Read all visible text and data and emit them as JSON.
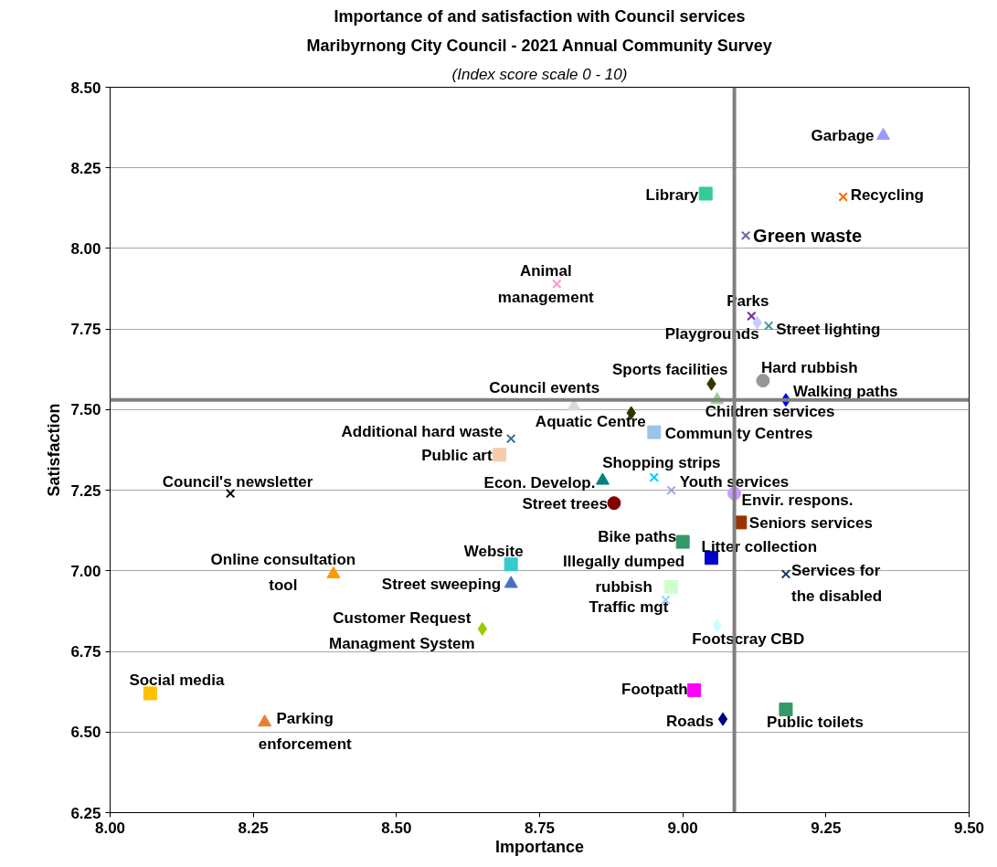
{
  "chart_data": {
    "type": "scatter",
    "title": "Importance of and satisfaction with Council services",
    "subtitle": "Maribyrnong City Council - 2021 Annual Community Survey",
    "annotations": [
      "(Index score scale 0 - 10)"
    ],
    "xlabel": "Importance",
    "ylabel": "Satisfaction",
    "xlim": [
      8.0,
      9.5
    ],
    "xticks": [
      {
        "value": 8.0,
        "label": "8.00"
      },
      {
        "value": 8.25,
        "label": "8.25"
      },
      {
        "value": 8.5,
        "label": "8.50"
      },
      {
        "value": 8.75,
        "label": "8.75"
      },
      {
        "value": 9.0,
        "label": "9.00"
      },
      {
        "value": 9.25,
        "label": "9.25"
      },
      {
        "value": 9.5,
        "label": "9.50"
      }
    ],
    "ylim": [
      6.25,
      8.5
    ],
    "yticks": [
      {
        "value": 6.25,
        "label": "6.25"
      },
      {
        "value": 6.5,
        "label": "6.50"
      },
      {
        "value": 6.75,
        "label": "6.75"
      },
      {
        "value": 7.0,
        "label": "7.00"
      },
      {
        "value": 7.25,
        "label": "7.25"
      },
      {
        "value": 7.5,
        "label": "7.50"
      },
      {
        "value": 7.75,
        "label": "7.75"
      },
      {
        "value": 8.0,
        "label": "8.00"
      },
      {
        "value": 8.25,
        "label": "8.25"
      },
      {
        "value": 8.5,
        "label": "8.50"
      }
    ],
    "grid": "y",
    "ref_lines": [
      {
        "axis": "x",
        "value": 9.09,
        "color": "#808080"
      },
      {
        "axis": "y",
        "value": 7.53,
        "color": "#808080"
      }
    ],
    "series": [
      {
        "name": "Garbage",
        "color": "#9999ff",
        "marker": "triangle",
        "x": [
          9.35
        ],
        "values": [
          8.35
        ]
      },
      {
        "name": "Recycling",
        "color": "#ff6600",
        "marker": "cross",
        "x": [
          9.28
        ],
        "values": [
          8.16
        ]
      },
      {
        "name": "Library",
        "color": "#33cc99",
        "marker": "square",
        "x": [
          9.04
        ],
        "values": [
          8.17
        ]
      },
      {
        "name": "Green waste",
        "color": "#666699",
        "marker": "cross",
        "x": [
          9.11
        ],
        "values": [
          8.04
        ]
      },
      {
        "name": "Animal\nmanagement",
        "color": "#ff99cc",
        "marker": "cross",
        "x": [
          8.78
        ],
        "values": [
          7.89
        ]
      },
      {
        "name": "Parks",
        "color": "#7030a0",
        "marker": "cross",
        "x": [
          9.12
        ],
        "values": [
          7.79
        ]
      },
      {
        "name": "Playgrounds",
        "color": "#ccccff",
        "marker": "diamond",
        "x": [
          9.13
        ],
        "values": [
          7.77
        ]
      },
      {
        "name": "Street lighting",
        "color": "#339999",
        "marker": "cross",
        "x": [
          9.15
        ],
        "values": [
          7.76
        ]
      },
      {
        "name": "Sports facilities",
        "color": "#333300",
        "marker": "diamond",
        "x": [
          9.05
        ],
        "values": [
          7.58
        ]
      },
      {
        "name": "Hard rubbish",
        "color": "#969696",
        "marker": "circle",
        "x": [
          9.14
        ],
        "values": [
          7.59
        ]
      },
      {
        "name": "Walking paths",
        "color": "#0000ff",
        "marker": "diamond",
        "x": [
          9.18
        ],
        "values": [
          7.53
        ]
      },
      {
        "name": "Children services",
        "color": "#99cc99",
        "marker": "triangle",
        "x": [
          9.06
        ],
        "values": [
          7.53
        ]
      },
      {
        "name": "Council events",
        "color": "#d9d9d9",
        "marker": "triangle",
        "x": [
          8.81
        ],
        "values": [
          7.51
        ]
      },
      {
        "name": "Aquatic Centre",
        "color": "#333300",
        "marker": "diamond",
        "x": [
          8.91
        ],
        "values": [
          7.49
        ]
      },
      {
        "name": "Community Centres",
        "color": "#9dc3e6",
        "marker": "square",
        "x": [
          8.95
        ],
        "values": [
          7.43
        ]
      },
      {
        "name": "Additional hard waste",
        "color": "#336699",
        "marker": "cross",
        "x": [
          8.7
        ],
        "values": [
          7.41
        ]
      },
      {
        "name": "Public art",
        "color": "#f8cbad",
        "marker": "square",
        "x": [
          8.68
        ],
        "values": [
          7.36
        ]
      },
      {
        "name": "Econ. Develop.",
        "color": "#008080",
        "marker": "triangle",
        "x": [
          8.86
        ],
        "values": [
          7.28
        ]
      },
      {
        "name": "Shopping strips",
        "color": "#00ccff",
        "marker": "cross",
        "x": [
          8.95
        ],
        "values": [
          7.29
        ]
      },
      {
        "name": "Youth services",
        "color": "#99a8d9",
        "marker": "cross",
        "x": [
          8.98
        ],
        "values": [
          7.25
        ]
      },
      {
        "name": "Council's newsletter",
        "color": "#000000",
        "marker": "cross",
        "x": [
          8.21
        ],
        "values": [
          7.24
        ]
      },
      {
        "name": "Street trees",
        "color": "#800000",
        "marker": "circle",
        "x": [
          8.88
        ],
        "values": [
          7.21
        ]
      },
      {
        "name": "Envir. respons.",
        "color": "#cc99ff",
        "marker": "circle",
        "x": [
          9.09
        ],
        "values": [
          7.24
        ]
      },
      {
        "name": "Seniors services",
        "color": "#993300",
        "marker": "square",
        "x": [
          9.1
        ],
        "values": [
          7.15
        ]
      },
      {
        "name": "Bike paths",
        "color": "#339966",
        "marker": "square",
        "x": [
          9.0
        ],
        "values": [
          7.09
        ]
      },
      {
        "name": "Litter collection",
        "color": "#0000cc",
        "marker": "square",
        "x": [
          9.05
        ],
        "values": [
          7.04
        ]
      },
      {
        "name": "Website",
        "color": "#33cccc",
        "marker": "square",
        "x": [
          8.7
        ],
        "values": [
          7.02
        ]
      },
      {
        "name": "Services for\nthe disabled",
        "color": "#003366",
        "marker": "cross",
        "x": [
          9.18
        ],
        "values": [
          6.99
        ]
      },
      {
        "name": "Online consultation\ntool",
        "color": "#ff9900",
        "marker": "triangle",
        "x": [
          8.39
        ],
        "values": [
          6.99
        ]
      },
      {
        "name": "Street sweeping",
        "color": "#4472c4",
        "marker": "triangle",
        "x": [
          8.7
        ],
        "values": [
          6.96
        ]
      },
      {
        "name": "Illegally dumped\nrubbish",
        "color": "#ccffcc",
        "marker": "square",
        "x": [
          8.98
        ],
        "values": [
          6.95
        ]
      },
      {
        "name": "Traffic mgt",
        "color": "#99ccff",
        "marker": "cross",
        "x": [
          8.97
        ],
        "values": [
          6.91
        ]
      },
      {
        "name": "Footscray CBD",
        "color": "#ccffff",
        "marker": "diamond",
        "x": [
          9.06
        ],
        "values": [
          6.83
        ]
      },
      {
        "name": "Customer Request\nManagment System",
        "color": "#99cc00",
        "marker": "diamond",
        "x": [
          8.65
        ],
        "values": [
          6.82
        ]
      },
      {
        "name": "Social media",
        "color": "#ffc000",
        "marker": "square",
        "x": [
          8.07
        ],
        "values": [
          6.62
        ]
      },
      {
        "name": "Footpath",
        "color": "#ff00ff",
        "marker": "square",
        "x": [
          9.02
        ],
        "values": [
          6.63
        ]
      },
      {
        "name": "Roads",
        "color": "#000080",
        "marker": "diamond",
        "x": [
          9.07
        ],
        "values": [
          6.54
        ]
      },
      {
        "name": "Public toilets",
        "color": "#339966",
        "marker": "square",
        "x": [
          9.18
        ],
        "values": [
          6.57
        ]
      },
      {
        "name": "Parking\nenforcement",
        "color": "#ed7d31",
        "marker": "triangle",
        "x": [
          8.27
        ],
        "values": [
          6.53
        ]
      }
    ]
  }
}
